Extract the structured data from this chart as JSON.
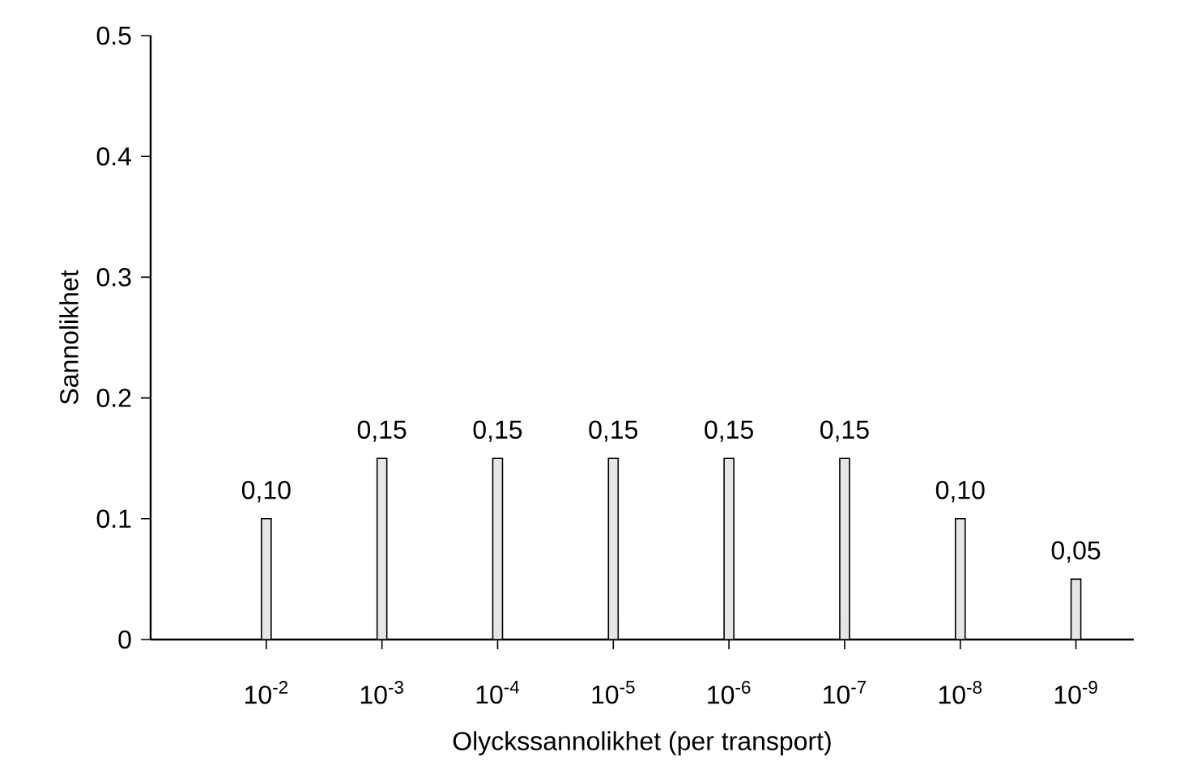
{
  "chart_data": {
    "type": "bar",
    "xlabel": "Olyckssannolikhet (per transport)",
    "ylabel": "Sannolikhet",
    "categories": [
      "10$^{-2}$",
      "10$^{-3}$",
      "10$^{-4}$",
      "10$^{-5}$",
      "10$^{-6}$",
      "10$^{-7}$",
      "10$^{-8}$",
      "10$^{-9}$"
    ],
    "values": [
      0.1,
      0.15,
      0.15,
      0.15,
      0.15,
      0.15,
      0.1,
      0.05
    ],
    "value_labels": [
      "0,10",
      "0,15",
      "0,15",
      "0,15",
      "0,15",
      "0,15",
      "0,10",
      "0,05"
    ],
    "color": "#e6e6e6",
    "ylim": [
      0,
      0.5
    ],
    "yticks": [
      {
        "value": 0,
        "label": "0"
      },
      0.1,
      0.2,
      0.3,
      0.4,
      0.5
    ],
    "grid": false
  }
}
